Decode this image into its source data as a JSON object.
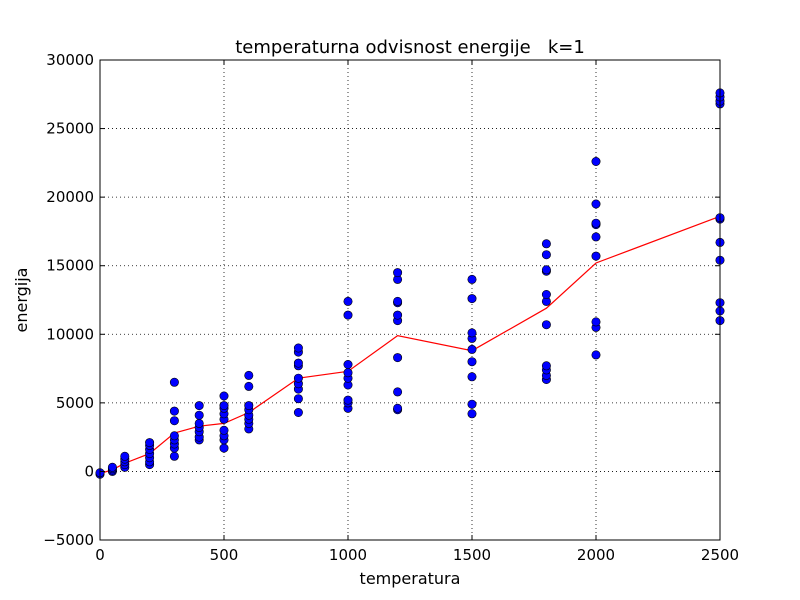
{
  "chart_data": {
    "type": "scatter",
    "title": "temperaturna odvisnost energije   k=1",
    "xlabel": "temperatura",
    "ylabel": "energija",
    "xlim": [
      0,
      2500
    ],
    "ylim": [
      -5000,
      30000
    ],
    "xticks": [
      0,
      500,
      1000,
      1500,
      2000,
      2500
    ],
    "yticks": [
      -5000,
      0,
      5000,
      10000,
      15000,
      20000,
      25000,
      30000
    ],
    "xtick_labels": [
      "0",
      "500",
      "1000",
      "1500",
      "2000",
      "2500"
    ],
    "ytick_labels": [
      "−5000",
      "0",
      "5000",
      "10000",
      "15000",
      "20000",
      "25000",
      "30000"
    ],
    "grid": true,
    "series": [
      {
        "kind": "points",
        "color": "#0000ff",
        "points": [
          [
            0,
            -200
          ],
          [
            0,
            -100
          ],
          [
            50,
            0
          ],
          [
            50,
            100
          ],
          [
            50,
            200
          ],
          [
            50,
            300
          ],
          [
            100,
            300
          ],
          [
            100,
            500
          ],
          [
            100,
            700
          ],
          [
            100,
            900
          ],
          [
            100,
            1100
          ],
          [
            200,
            500
          ],
          [
            200,
            700
          ],
          [
            200,
            1000
          ],
          [
            200,
            1300
          ],
          [
            200,
            1600
          ],
          [
            200,
            1900
          ],
          [
            200,
            2100
          ],
          [
            300,
            1100
          ],
          [
            300,
            1700
          ],
          [
            300,
            2000
          ],
          [
            300,
            2300
          ],
          [
            300,
            2600
          ],
          [
            300,
            3700
          ],
          [
            300,
            4400
          ],
          [
            300,
            6500
          ],
          [
            400,
            2300
          ],
          [
            400,
            2500
          ],
          [
            400,
            2900
          ],
          [
            400,
            3200
          ],
          [
            400,
            3500
          ],
          [
            400,
            4100
          ],
          [
            400,
            4800
          ],
          [
            500,
            1700
          ],
          [
            500,
            2300
          ],
          [
            500,
            2600
          ],
          [
            500,
            3000
          ],
          [
            500,
            3800
          ],
          [
            500,
            4200
          ],
          [
            500,
            4600
          ],
          [
            500,
            4800
          ],
          [
            500,
            5500
          ],
          [
            600,
            3100
          ],
          [
            600,
            3500
          ],
          [
            600,
            3800
          ],
          [
            600,
            4100
          ],
          [
            600,
            4500
          ],
          [
            600,
            4800
          ],
          [
            600,
            6200
          ],
          [
            600,
            7000
          ],
          [
            800,
            4300
          ],
          [
            800,
            5300
          ],
          [
            800,
            6000
          ],
          [
            800,
            6400
          ],
          [
            800,
            6800
          ],
          [
            800,
            7700
          ],
          [
            800,
            7900
          ],
          [
            800,
            8700
          ],
          [
            800,
            9000
          ],
          [
            1000,
            4600
          ],
          [
            1000,
            5000
          ],
          [
            1000,
            5200
          ],
          [
            1000,
            6300
          ],
          [
            1000,
            6800
          ],
          [
            1000,
            7200
          ],
          [
            1000,
            7800
          ],
          [
            1000,
            11400
          ],
          [
            1000,
            12400
          ],
          [
            1200,
            4500
          ],
          [
            1200,
            4600
          ],
          [
            1200,
            5800
          ],
          [
            1200,
            8300
          ],
          [
            1200,
            11000
          ],
          [
            1200,
            11400
          ],
          [
            1200,
            12300
          ],
          [
            1200,
            12400
          ],
          [
            1200,
            14000
          ],
          [
            1200,
            14500
          ],
          [
            1500,
            4200
          ],
          [
            1500,
            4900
          ],
          [
            1500,
            6900
          ],
          [
            1500,
            8000
          ],
          [
            1500,
            8900
          ],
          [
            1500,
            9700
          ],
          [
            1500,
            10100
          ],
          [
            1500,
            12600
          ],
          [
            1500,
            14000
          ],
          [
            1800,
            6700
          ],
          [
            1800,
            7000
          ],
          [
            1800,
            7400
          ],
          [
            1800,
            7700
          ],
          [
            1800,
            10700
          ],
          [
            1800,
            12400
          ],
          [
            1800,
            12900
          ],
          [
            1800,
            14600
          ],
          [
            1800,
            14700
          ],
          [
            1800,
            15800
          ],
          [
            1800,
            16600
          ],
          [
            2000,
            8500
          ],
          [
            2000,
            10500
          ],
          [
            2000,
            10900
          ],
          [
            2000,
            15700
          ],
          [
            2000,
            17100
          ],
          [
            2000,
            18000
          ],
          [
            2000,
            18100
          ],
          [
            2000,
            19500
          ],
          [
            2000,
            22600
          ],
          [
            2500,
            11000
          ],
          [
            2500,
            11700
          ],
          [
            2500,
            12300
          ],
          [
            2500,
            15400
          ],
          [
            2500,
            16700
          ],
          [
            2500,
            18400
          ],
          [
            2500,
            18500
          ],
          [
            2500,
            26800
          ],
          [
            2500,
            27000
          ],
          [
            2500,
            27300
          ],
          [
            2500,
            27600
          ]
        ]
      },
      {
        "kind": "line",
        "color": "#ff0000",
        "x": [
          0,
          50,
          100,
          200,
          300,
          400,
          500,
          600,
          800,
          1000,
          1200,
          1500,
          1800,
          2000,
          2500
        ],
        "y": [
          -150,
          120,
          600,
          1300,
          2800,
          3300,
          3500,
          4300,
          6800,
          7300,
          9900,
          8800,
          11900,
          15200,
          18600
        ]
      }
    ]
  }
}
